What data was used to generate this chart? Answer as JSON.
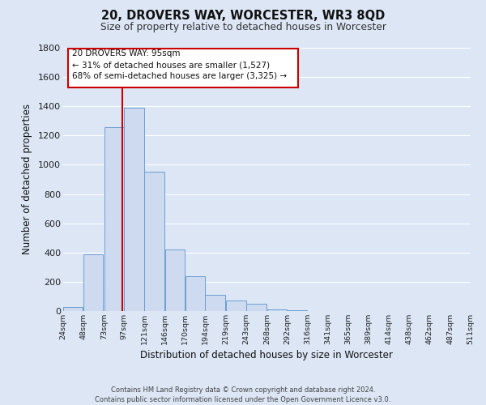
{
  "title": "20, DROVERS WAY, WORCESTER, WR3 8QD",
  "subtitle": "Size of property relative to detached houses in Worcester",
  "xlabel": "Distribution of detached houses by size in Worcester",
  "ylabel": "Number of detached properties",
  "bar_left_edges": [
    24,
    48,
    73,
    97,
    121,
    146,
    170,
    194,
    219,
    243,
    268,
    292,
    316,
    341,
    365,
    389,
    414,
    438,
    462,
    487
  ],
  "bar_heights": [
    25,
    390,
    1255,
    1390,
    950,
    420,
    235,
    110,
    70,
    50,
    10,
    5,
    2,
    0,
    0,
    0,
    0,
    0,
    0,
    0
  ],
  "bar_color": "#cddaf0",
  "bar_edgecolor": "#6b9ed2",
  "xlim": [
    24,
    511
  ],
  "ylim": [
    0,
    1800
  ],
  "yticks": [
    0,
    200,
    400,
    600,
    800,
    1000,
    1200,
    1400,
    1600,
    1800
  ],
  "xtick_labels": [
    "24sqm",
    "48sqm",
    "73sqm",
    "97sqm",
    "121sqm",
    "146sqm",
    "170sqm",
    "194sqm",
    "219sqm",
    "243sqm",
    "268sqm",
    "292sqm",
    "316sqm",
    "341sqm",
    "365sqm",
    "389sqm",
    "414sqm",
    "438sqm",
    "462sqm",
    "487sqm",
    "511sqm"
  ],
  "xtick_positions": [
    24,
    48,
    73,
    97,
    121,
    146,
    170,
    194,
    219,
    243,
    268,
    292,
    316,
    341,
    365,
    389,
    414,
    438,
    462,
    487,
    511
  ],
  "vline_x": 95,
  "vline_color": "#cc0000",
  "annot_line1": "20 DROVERS WAY: 95sqm",
  "annot_line2": "← 31% of detached houses are smaller (1,527)",
  "annot_line3": "68% of semi-detached houses are larger (3,325) →",
  "footer_text": "Contains HM Land Registry data © Crown copyright and database right 2024.\nContains public sector information licensed under the Open Government Licence v3.0.",
  "grid_color": "#ffffff",
  "bg_color": "#dce6f5"
}
